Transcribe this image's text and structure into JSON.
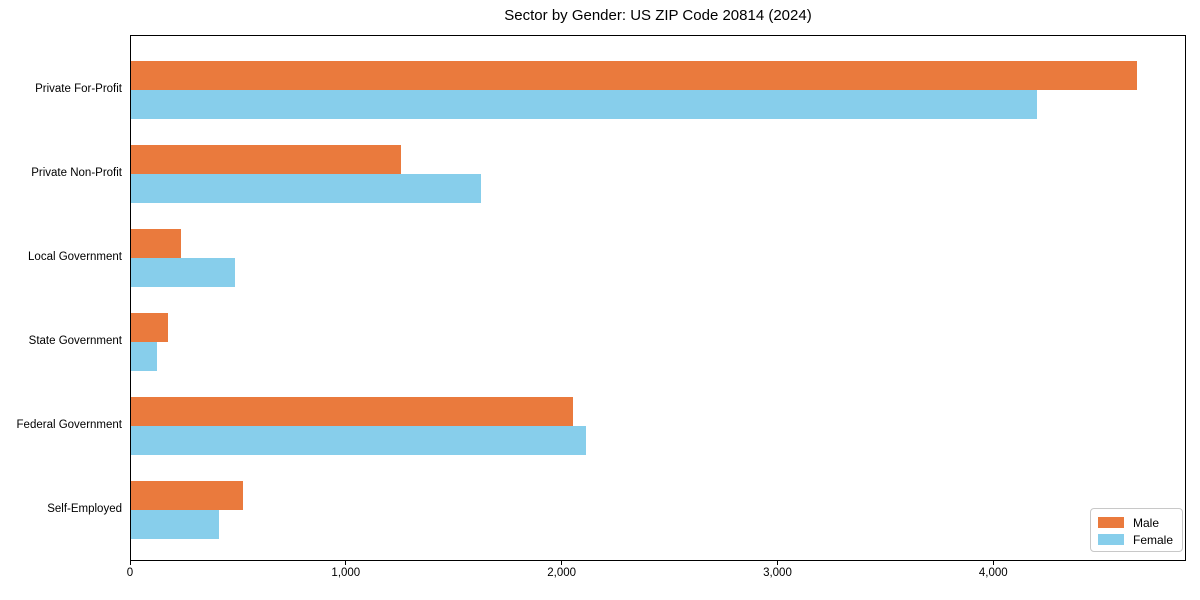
{
  "chart_data": {
    "type": "bar",
    "orientation": "horizontal",
    "title": "Sector by Gender: US ZIP Code 20814 (2024)",
    "categories": [
      "Private For-Profit",
      "Private Non-Profit",
      "Local Government",
      "State Government",
      "Federal Government",
      "Self-Employed"
    ],
    "series": [
      {
        "name": "Male",
        "color": "#EA7A3D",
        "values": [
          4660,
          1250,
          230,
          170,
          2050,
          520
        ]
      },
      {
        "name": "Female",
        "color": "#87CEEB",
        "values": [
          4200,
          1620,
          480,
          120,
          2110,
          410
        ]
      }
    ],
    "xlabel": "",
    "ylabel": "",
    "xlim": [
      0,
      4893
    ],
    "x_ticks": [
      {
        "value": 0,
        "label": "0"
      },
      {
        "value": 1000,
        "label": "1,000"
      },
      {
        "value": 2000,
        "label": "2,000"
      },
      {
        "value": 3000,
        "label": "3,000"
      },
      {
        "value": 4000,
        "label": "4,000"
      }
    ],
    "grid": false,
    "legend_position": "lower right",
    "legend_entries": [
      "Male",
      "Female"
    ]
  },
  "colors": {
    "background": "#ffffff",
    "axis": "#000000",
    "text": "#000000",
    "legend_border": "#c8c8c8",
    "male": "#EA7A3D",
    "female": "#87CEEB"
  }
}
